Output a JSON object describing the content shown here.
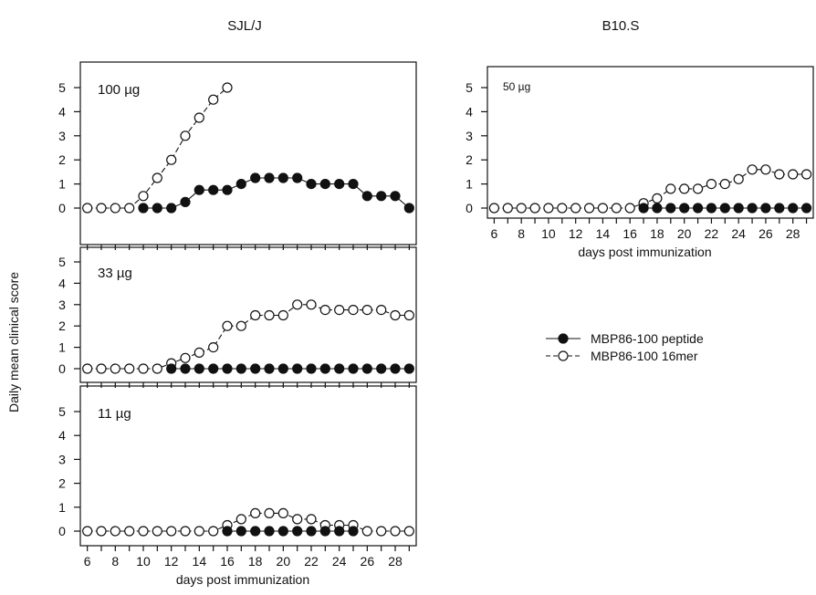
{
  "figure": {
    "ylabel": "Daily mean clinical score",
    "group_titles": [
      "SJL/J",
      "B10.S"
    ],
    "legend": [
      {
        "label": "MBP86-100 peptide",
        "marker": "filled-circle",
        "line": "solid"
      },
      {
        "label": "MBP86-100 16mer",
        "marker": "open-circle",
        "line": "dashed"
      }
    ]
  },
  "chart_data": [
    {
      "type": "line",
      "group": "SJL/J",
      "panel_label": "100 µg",
      "xlabel": "",
      "ylabel": "Daily mean clinical score",
      "xlim": [
        5.5,
        29.5
      ],
      "ylim": [
        -0.2,
        5.6
      ],
      "yticks": [
        0,
        1,
        2,
        3,
        4,
        5
      ],
      "xticks": [
        6,
        8,
        10,
        12,
        14,
        16,
        18,
        20,
        22,
        24,
        26,
        28
      ],
      "show_xtick_labels": false,
      "series": [
        {
          "name": "MBP86-100 16mer",
          "marker": "open",
          "dashed": true,
          "x": [
            6,
            7,
            8,
            9,
            10,
            11,
            12,
            13,
            14,
            15,
            16
          ],
          "y": [
            0,
            0,
            0,
            0,
            0.5,
            1.25,
            2,
            3,
            3.75,
            4.5,
            5
          ]
        },
        {
          "name": "MBP86-100 peptide",
          "marker": "filled",
          "dashed": false,
          "x": [
            10,
            11,
            12,
            13,
            14,
            15,
            16,
            17,
            18,
            19,
            20,
            21,
            22,
            23,
            24,
            25,
            26,
            27,
            28,
            29
          ],
          "y": [
            0,
            0,
            0,
            0.25,
            0.75,
            0.75,
            0.75,
            1,
            1.25,
            1.25,
            1.25,
            1.25,
            1,
            1,
            1,
            1,
            0.5,
            0.5,
            0.5,
            0
          ]
        }
      ]
    },
    {
      "type": "line",
      "group": "SJL/J",
      "panel_label": "33 µg",
      "xlabel": "",
      "ylabel": "Daily mean clinical score",
      "xlim": [
        5.5,
        29.5
      ],
      "ylim": [
        -0.2,
        5.6
      ],
      "yticks": [
        0,
        1,
        2,
        3,
        4,
        5
      ],
      "xticks": [
        6,
        8,
        10,
        12,
        14,
        16,
        18,
        20,
        22,
        24,
        26,
        28
      ],
      "show_xtick_labels": false,
      "series": [
        {
          "name": "MBP86-100 16mer",
          "marker": "open",
          "dashed": true,
          "x": [
            6,
            7,
            8,
            9,
            10,
            11,
            12,
            13,
            14,
            15,
            16,
            17,
            18,
            19,
            20,
            21,
            22,
            23,
            24,
            25,
            26,
            27,
            28,
            29
          ],
          "y": [
            0,
            0,
            0,
            0,
            0,
            0,
            0.25,
            0.5,
            0.75,
            1,
            2,
            2,
            2.5,
            2.5,
            2.5,
            3,
            3,
            2.75,
            2.75,
            2.75,
            2.75,
            2.75,
            2.5,
            2.5
          ]
        },
        {
          "name": "MBP86-100 peptide",
          "marker": "filled",
          "dashed": false,
          "x": [
            12,
            13,
            14,
            15,
            16,
            17,
            18,
            19,
            20,
            21,
            22,
            23,
            24,
            25,
            26,
            27,
            28,
            29
          ],
          "y": [
            0,
            0,
            0,
            0,
            0,
            0,
            0,
            0,
            0,
            0,
            0,
            0,
            0,
            0,
            0,
            0,
            0,
            0
          ]
        }
      ]
    },
    {
      "type": "line",
      "group": "SJL/J",
      "panel_label": "11 µg",
      "xlabel": "days post immunization",
      "ylabel": "Daily mean clinical score",
      "xlim": [
        5.5,
        29.5
      ],
      "ylim": [
        -0.2,
        5.6
      ],
      "yticks": [
        0,
        1,
        2,
        3,
        4,
        5
      ],
      "xticks": [
        6,
        8,
        10,
        12,
        14,
        16,
        18,
        20,
        22,
        24,
        26,
        28
      ],
      "show_xtick_labels": true,
      "series": [
        {
          "name": "MBP86-100 16mer",
          "marker": "open",
          "dashed": true,
          "x": [
            6,
            7,
            8,
            9,
            10,
            11,
            12,
            13,
            14,
            15,
            16,
            17,
            18,
            19,
            20,
            21,
            22,
            23,
            24,
            25,
            26,
            27,
            28,
            29
          ],
          "y": [
            0,
            0,
            0,
            0,
            0,
            0,
            0,
            0,
            0,
            0,
            0.25,
            0.5,
            0.75,
            0.75,
            0.75,
            0.5,
            0.5,
            0.25,
            0.25,
            0.25,
            0,
            0,
            0,
            0
          ]
        },
        {
          "name": "MBP86-100 peptide",
          "marker": "filled",
          "dashed": false,
          "x": [
            16,
            17,
            18,
            19,
            20,
            21,
            22,
            23,
            24,
            25
          ],
          "y": [
            0,
            0,
            0,
            0,
            0,
            0,
            0,
            0,
            0,
            0
          ]
        }
      ]
    },
    {
      "type": "line",
      "group": "B10.S",
      "panel_label": "50 µg",
      "xlabel": "days post immunization",
      "ylabel": "",
      "xlim": [
        5.5,
        29.5
      ],
      "ylim": [
        -0.2,
        5.6
      ],
      "yticks": [
        0,
        1,
        2,
        3,
        4,
        5
      ],
      "xticks": [
        6,
        8,
        10,
        12,
        14,
        16,
        18,
        20,
        22,
        24,
        26,
        28
      ],
      "show_xtick_labels": true,
      "series": [
        {
          "name": "MBP86-100 16mer",
          "marker": "open",
          "dashed": true,
          "x": [
            6,
            7,
            8,
            9,
            10,
            11,
            12,
            13,
            14,
            15,
            16,
            17,
            18,
            19,
            20,
            21,
            22,
            23,
            24,
            25,
            26,
            27,
            28,
            29
          ],
          "y": [
            0,
            0,
            0,
            0,
            0,
            0,
            0,
            0,
            0,
            0,
            0,
            0.2,
            0.4,
            0.8,
            0.8,
            0.8,
            1,
            1,
            1.2,
            1.6,
            1.6,
            1.4,
            1.4,
            1.4
          ]
        },
        {
          "name": "MBP86-100 peptide",
          "marker": "filled",
          "dashed": false,
          "x": [
            17,
            18,
            19,
            20,
            21,
            22,
            23,
            24,
            25,
            26,
            27,
            28,
            29
          ],
          "y": [
            0,
            0,
            0,
            0,
            0,
            0,
            0,
            0,
            0,
            0,
            0,
            0,
            0
          ]
        }
      ]
    }
  ]
}
